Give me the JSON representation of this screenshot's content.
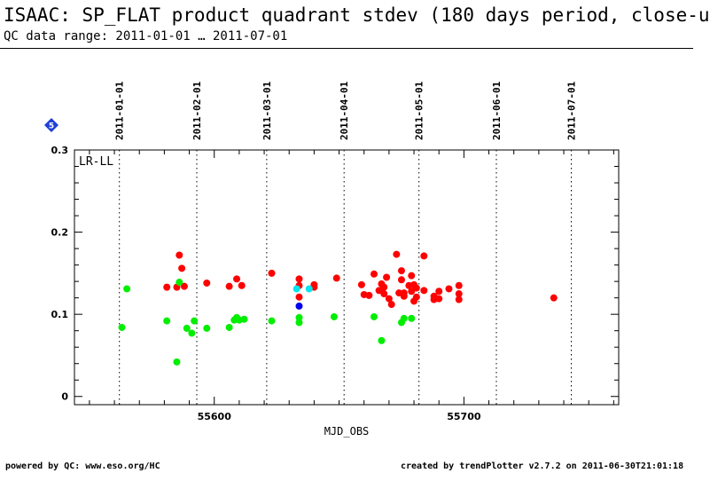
{
  "header": {
    "title": "ISAAC: SP_FLAT product quadrant stdev (180 days period, close-u",
    "subtitle": "QC data range: 2011-01-01 … 2011-07-01"
  },
  "footer": {
    "left": "powered by QC: www.eso.org/HC",
    "right": "created by trendPlotter v2.7.2 on 2011-06-30T21:01:18"
  },
  "badge": {
    "label": "5",
    "color": "#1f3fd6"
  },
  "chart_data": {
    "type": "scatter",
    "panel_label": "LR-LL",
    "xlabel": "MJD_OBS",
    "ylabel": "",
    "xlim": [
      55544,
      55762
    ],
    "ylim": [
      -0.01,
      0.3
    ],
    "x_ticks": [
      55600,
      55700
    ],
    "y_ticks": [
      0,
      0.1,
      0.2,
      0.3
    ],
    "y_tick_labels": [
      "0",
      "0.1",
      "0.2",
      "0.3"
    ],
    "date_markers": [
      {
        "label": "2011-01-01",
        "mjd": 55562
      },
      {
        "label": "2011-02-01",
        "mjd": 55593
      },
      {
        "label": "2011-03-01",
        "mjd": 55621
      },
      {
        "label": "2011-04-01",
        "mjd": 55652
      },
      {
        "label": "2011-05-01",
        "mjd": 55682
      },
      {
        "label": "2011-06-01",
        "mjd": 55713
      },
      {
        "label": "2011-07-01",
        "mjd": 55743
      }
    ],
    "series": [
      {
        "color": "#ff0000",
        "points": [
          [
            55581,
            0.133
          ],
          [
            55585,
            0.133
          ],
          [
            55586,
            0.172
          ],
          [
            55587,
            0.156
          ],
          [
            55588,
            0.134
          ],
          [
            55597,
            0.138
          ],
          [
            55606,
            0.134
          ],
          [
            55609,
            0.143
          ],
          [
            55611,
            0.135
          ],
          [
            55623,
            0.15
          ],
          [
            55634,
            0.143
          ],
          [
            55634,
            0.121
          ],
          [
            55634,
            0.135
          ],
          [
            55640,
            0.136
          ],
          [
            55640,
            0.133
          ],
          [
            55649,
            0.144
          ],
          [
            55659,
            0.136
          ],
          [
            55660,
            0.124
          ],
          [
            55662,
            0.123
          ],
          [
            55664,
            0.149
          ],
          [
            55666,
            0.129
          ],
          [
            55667,
            0.137
          ],
          [
            55668,
            0.133
          ],
          [
            55668,
            0.125
          ],
          [
            55669,
            0.145
          ],
          [
            55670,
            0.119
          ],
          [
            55671,
            0.112
          ],
          [
            55673,
            0.173
          ],
          [
            55674,
            0.126
          ],
          [
            55675,
            0.153
          ],
          [
            55675,
            0.142
          ],
          [
            55676,
            0.122
          ],
          [
            55676,
            0.126
          ],
          [
            55678,
            0.135
          ],
          [
            55679,
            0.147
          ],
          [
            55679,
            0.128
          ],
          [
            55680,
            0.116
          ],
          [
            55680,
            0.136
          ],
          [
            55681,
            0.121
          ],
          [
            55681,
            0.132
          ],
          [
            55684,
            0.171
          ],
          [
            55684,
            0.129
          ],
          [
            55688,
            0.122
          ],
          [
            55688,
            0.118
          ],
          [
            55690,
            0.128
          ],
          [
            55690,
            0.119
          ],
          [
            55694,
            0.131
          ],
          [
            55698,
            0.135
          ],
          [
            55698,
            0.125
          ],
          [
            55698,
            0.118
          ],
          [
            55736,
            0.12
          ]
        ]
      },
      {
        "color": "#00ee00",
        "points": [
          [
            55563,
            0.084
          ],
          [
            55565,
            0.131
          ],
          [
            55581,
            0.092
          ],
          [
            55585,
            0.042
          ],
          [
            55586,
            0.139
          ],
          [
            55589,
            0.083
          ],
          [
            55591,
            0.077
          ],
          [
            55592,
            0.092
          ],
          [
            55597,
            0.083
          ],
          [
            55606,
            0.084
          ],
          [
            55608,
            0.093
          ],
          [
            55609,
            0.096
          ],
          [
            55610,
            0.093
          ],
          [
            55612,
            0.094
          ],
          [
            55623,
            0.092
          ],
          [
            55634,
            0.096
          ],
          [
            55634,
            0.09
          ],
          [
            55648,
            0.097
          ],
          [
            55664,
            0.097
          ],
          [
            55667,
            0.068
          ],
          [
            55675,
            0.09
          ],
          [
            55676,
            0.095
          ],
          [
            55679,
            0.095
          ]
        ]
      },
      {
        "color": "#00e5ee",
        "points": [
          [
            55633,
            0.131
          ],
          [
            55638,
            0.131
          ]
        ]
      },
      {
        "color": "#0000ee",
        "points": [
          [
            55634,
            0.11
          ]
        ]
      }
    ]
  }
}
